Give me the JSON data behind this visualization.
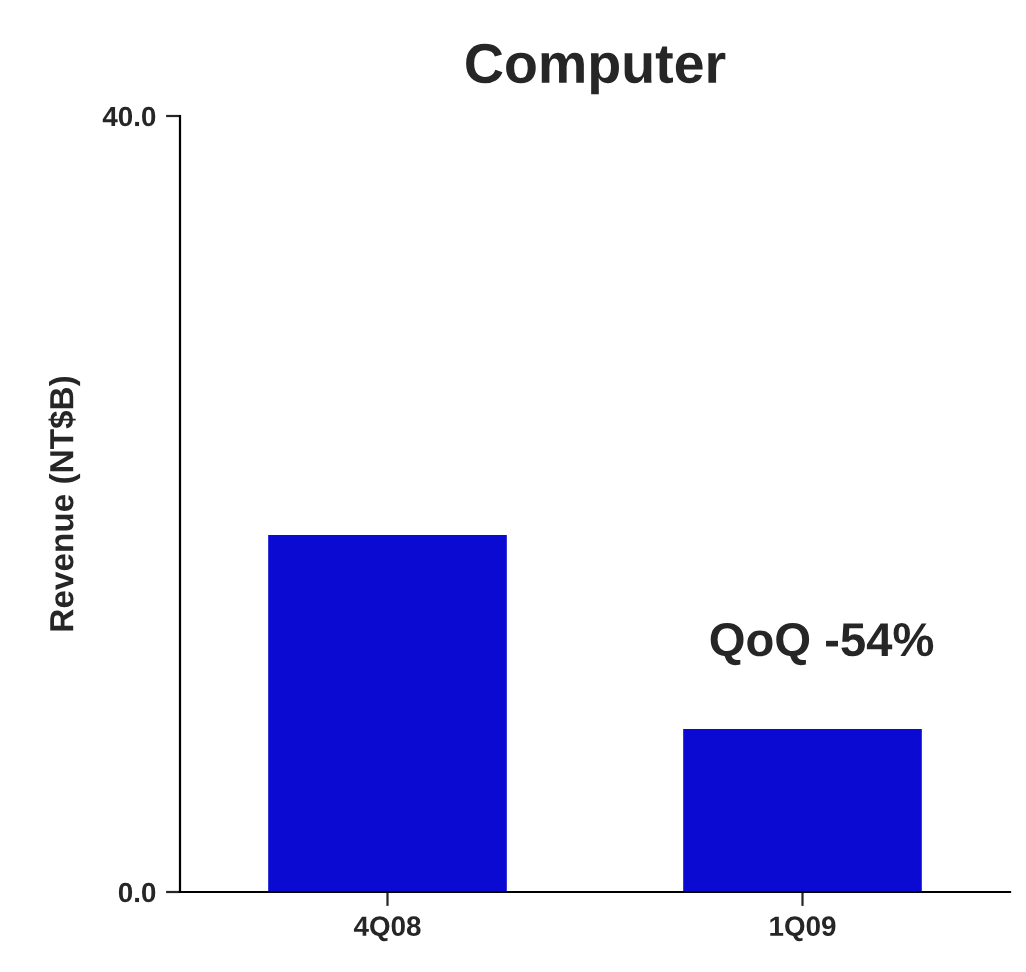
{
  "chart_data": {
    "type": "bar",
    "title": "Computer",
    "ylabel": "Revenue (NT$B)",
    "categories": [
      "4Q08",
      "1Q09"
    ],
    "series": [
      {
        "color": "#0a0ad2",
        "values": [
          18.4,
          8.4
        ]
      }
    ],
    "ylim": [
      0,
      40
    ],
    "yticks": [
      {
        "value": 0,
        "label": "0.0"
      },
      {
        "value": 40,
        "label": "40.0"
      }
    ],
    "grid": false,
    "legend": false,
    "annotations": [
      "QoQ -54%"
    ]
  }
}
